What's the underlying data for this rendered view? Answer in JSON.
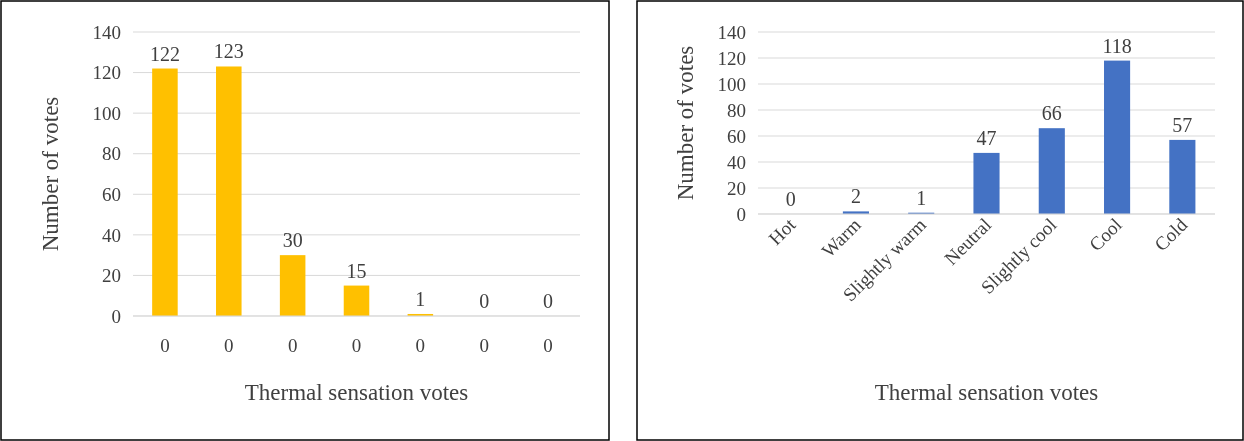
{
  "chart_data": [
    {
      "type": "bar",
      "categories": [
        "0",
        "0",
        "0",
        "0",
        "0",
        "0",
        "0"
      ],
      "values": [
        122,
        123,
        30,
        15,
        1,
        0,
        0
      ],
      "color": "#ffc000",
      "ylim": [
        0,
        140
      ],
      "yticks": [
        0,
        20,
        40,
        60,
        80,
        100,
        120,
        140
      ],
      "grid": "y",
      "data_labels": true,
      "xlabel": "Thermal sensation votes",
      "ylabel": "Number of votes"
    },
    {
      "type": "bar",
      "categories": [
        "Hot",
        "Warm",
        "Slightly warm",
        "Neutral",
        "Slightly cool",
        "Cool",
        "Cold"
      ],
      "values": [
        0,
        2,
        1,
        47,
        66,
        118,
        57
      ],
      "color": "#4472c4",
      "ylim": [
        0,
        140
      ],
      "yticks": [
        0,
        20,
        40,
        60,
        80,
        100,
        120,
        140
      ],
      "grid": "y",
      "data_labels": true,
      "xlabel": "Thermal sensation votes",
      "ylabel": "Number of votes"
    }
  ]
}
